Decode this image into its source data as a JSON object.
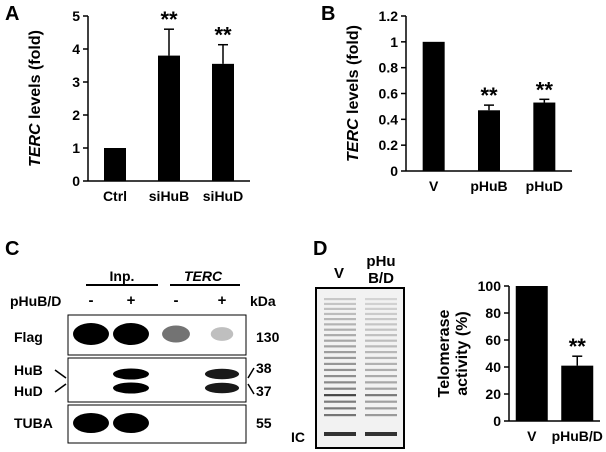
{
  "panels": {
    "A": "A",
    "B": "B",
    "C": "C",
    "D": "D"
  },
  "chart_data": [
    {
      "id": "A",
      "type": "bar",
      "categories": [
        "Ctrl",
        "siHuB",
        "siHuD"
      ],
      "values": [
        1.0,
        3.8,
        3.55
      ],
      "errors": [
        0,
        0.8,
        0.58
      ],
      "annotations": [
        "",
        "**",
        "**"
      ],
      "ylabel_italic": "TERC",
      "ylabel_rest": " levels (fold)",
      "ylim": [
        0,
        5
      ],
      "yticks": [
        "0",
        "1",
        "2",
        "3",
        "4",
        "5"
      ]
    },
    {
      "id": "B",
      "type": "bar",
      "categories": [
        "V",
        "pHuB",
        "pHuD"
      ],
      "values": [
        1.0,
        0.47,
        0.53
      ],
      "errors": [
        0,
        0.04,
        0.025
      ],
      "annotations": [
        "",
        "**",
        "**"
      ],
      "ylabel_italic": "TERC",
      "ylabel_rest": " levels (fold)",
      "ylim": [
        0,
        1.2
      ],
      "yticks": [
        "0",
        "0.2",
        "0.4",
        "0.6",
        "0.8",
        "1",
        "1.2"
      ]
    },
    {
      "id": "D",
      "type": "bar",
      "categories": [
        "V",
        "pHuB/D"
      ],
      "values": [
        100,
        41
      ],
      "errors": [
        0,
        7
      ],
      "annotations": [
        "",
        "**"
      ],
      "ylabel_line1": "Telomerase",
      "ylabel_line2": "activity (%)",
      "ylim": [
        0,
        100
      ],
      "yticks": [
        "0",
        "20",
        "40",
        "60",
        "80",
        "100"
      ]
    }
  ],
  "blot_c": {
    "group_inp": "Inp.",
    "group_terc": "TERC",
    "treatment": "pHuB/D",
    "lane_signs": [
      "-",
      "+",
      "-",
      "+"
    ],
    "kda_label": "kDa",
    "rows": [
      {
        "label": "Flag",
        "kda": "130",
        "intensity": [
          1.0,
          1.0,
          0.55,
          0.25
        ]
      },
      {
        "label1": "HuB",
        "label2": "HuD",
        "kda1": "38",
        "kda2": "37",
        "intensity": [
          0,
          1.0,
          0,
          0.9
        ]
      },
      {
        "label": "TUBA",
        "kda": "55",
        "intensity": [
          1.0,
          1.0,
          0,
          0
        ]
      }
    ]
  },
  "gel_d": {
    "lane1": "V",
    "lane2_line1": "pHu",
    "lane2_line2": "B/D",
    "ic_label": "IC"
  }
}
